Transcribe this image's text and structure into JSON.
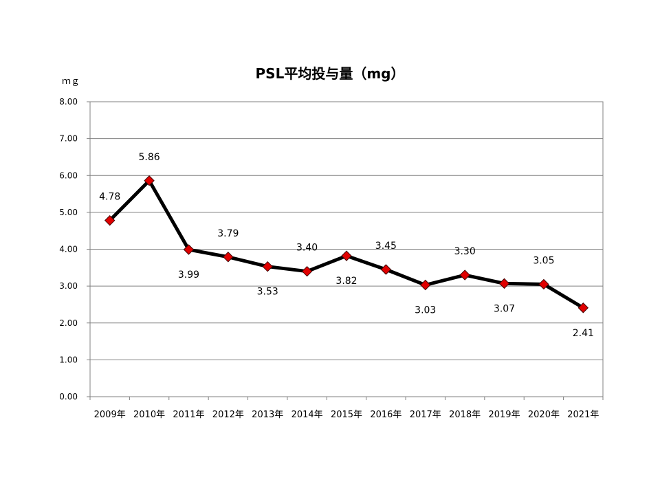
{
  "chart_data": {
    "type": "line",
    "title": "PSL平均投与量（mg）",
    "ylabel": "ｍｇ",
    "xlabel": "",
    "ylim": [
      0,
      8
    ],
    "yticks": [
      "0.00",
      "1.00",
      "2.00",
      "3.00",
      "4.00",
      "5.00",
      "6.00",
      "7.00",
      "8.00"
    ],
    "categories": [
      "2009年",
      "2010年",
      "2011年",
      "2012年",
      "2013年",
      "2014年",
      "2015年",
      "2016年",
      "2017年",
      "2018年",
      "2019年",
      "2020年",
      "2021年"
    ],
    "values": [
      4.78,
      5.86,
      3.99,
      3.79,
      3.53,
      3.4,
      3.82,
      3.45,
      3.03,
      3.3,
      3.07,
      3.05,
      2.41
    ],
    "data_labels": [
      "4.78",
      "5.86",
      "3.99",
      "3.79",
      "3.53",
      "3.40",
      "3.82",
      "3.45",
      "3.03",
      "3.30",
      "3.07",
      "3.05",
      "2.41"
    ],
    "grid": true,
    "line_color": "#000000",
    "marker_color": "#e00000",
    "marker_shape": "diamond"
  }
}
